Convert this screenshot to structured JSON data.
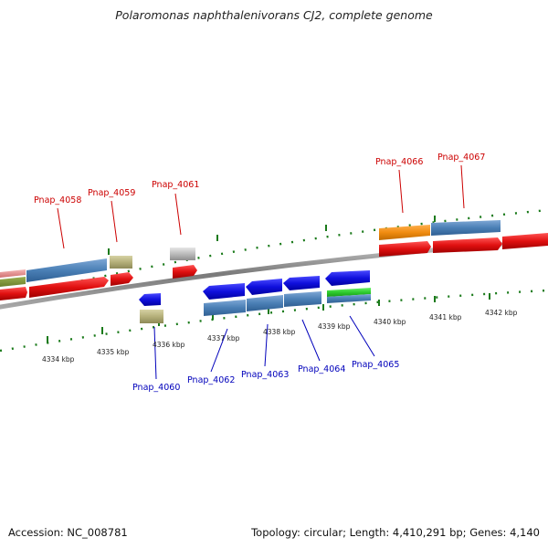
{
  "title": "Polaromonas naphthalenivorans CJ2, complete genome",
  "footer": {
    "accession": "Accession: NC_008781",
    "summary": "Topology: circular; Length: 4,410,291 bp; Genes: 4,140"
  },
  "colors": {
    "red": "#e01010",
    "blue": "#1010dd",
    "steel": "#4a7fb5",
    "olive": "#b5b07a",
    "orange": "#f08c10",
    "green": "#2ecc2e",
    "pink": "#e89090",
    "gray": "#bbbbbb",
    "tick": "#1a7a1a",
    "label_top": "#cc0000",
    "label_bottom": "#0000bb"
  },
  "labels_top": [
    "Pnap_4058",
    "Pnap_4059",
    "Pnap_4061",
    "Pnap_4066",
    "Pnap_4067"
  ],
  "labels_bottom": [
    "Pnap_4060",
    "Pnap_4062",
    "Pnap_4063",
    "Pnap_4064",
    "Pnap_4065"
  ],
  "kbp_ticks": [
    "4334 kbp",
    "4335 kbp",
    "4336 kbp",
    "4337 kbp",
    "4338 kbp",
    "4339 kbp",
    "4340 kbp",
    "4341 kbp",
    "4342 kbp"
  ]
}
